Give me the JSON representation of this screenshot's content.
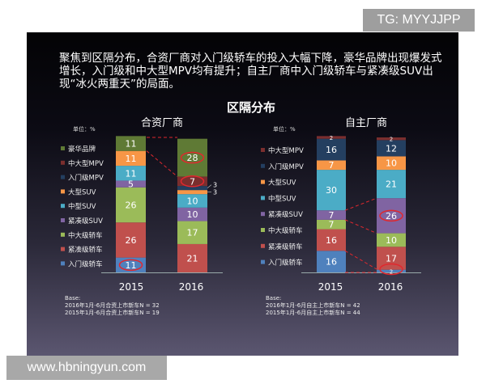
{
  "watermark_top": "TG: MYYJJPP",
  "watermark_bottom": "www.hbningyun.com",
  "intro": "聚焦到区隔分布，合资厂商对入门级轿车的投入大幅下降，豪华品牌出现爆发式增长，入门级和中大型MPV均有提升；自主厂商中入门级轿车与紧凑级SUV出现“冰火两重天”的局面。",
  "main_title": "区隔分布",
  "colors": {
    "入门级轿车": "#4f81bd",
    "紧凑级轿车": "#c0504d",
    "中大级轿车": "#9bbb59",
    "紧凑级SUV": "#8064a2",
    "中型SUV": "#4bacc6",
    "大型SUV": "#f79646",
    "入门级MPV": "#243f60",
    "中大型MPV": "#7a2e2e",
    "豪华品牌": "#5f7a35",
    "highlight": "#e0282e"
  },
  "chart_data": [
    {
      "type": "bar",
      "stacked": true,
      "title": "合资厂商",
      "unit_label": "单位：%",
      "categories": [
        "2015",
        "2016"
      ],
      "series": [
        {
          "name": "入门级轿车",
          "values": [
            11,
            0
          ]
        },
        {
          "name": "紧凑级轿车",
          "values": [
            26,
            21
          ]
        },
        {
          "name": "中大级轿车",
          "values": [
            26,
            17
          ]
        },
        {
          "name": "紧凑级SUV",
          "values": [
            5,
            10
          ]
        },
        {
          "name": "中型SUV",
          "values": [
            11,
            10
          ]
        },
        {
          "name": "大型SUV",
          "values": [
            11,
            3
          ]
        },
        {
          "name": "入门级MPV",
          "values": [
            0,
            3
          ]
        },
        {
          "name": "中大型MPV",
          "values": [
            0,
            7
          ]
        },
        {
          "name": "豪华品牌",
          "values": [
            11,
            28
          ]
        }
      ],
      "legend": [
        "豪华品牌",
        "中大型MPV",
        "入门级MPV",
        "大型SUV",
        "中型SUV",
        "紧凑级SUV",
        "中大级轿车",
        "紧凑级轿车",
        "入门级轿车"
      ],
      "highlighted": [
        [
          "入门级轿车",
          0
        ],
        [
          "豪华品牌",
          1
        ],
        [
          "中大型MPV",
          1
        ]
      ],
      "base_label": "Base:",
      "base_notes": [
        "2016年1月-6月合资上市新车N = 32",
        "2015年1月-6月合资上市新车N = 19"
      ]
    },
    {
      "type": "bar",
      "stacked": true,
      "title": "自主厂商",
      "unit_label": "单位：%",
      "categories": [
        "2015",
        "2016"
      ],
      "series": [
        {
          "name": "入门级轿车",
          "values": [
            16,
            2
          ]
        },
        {
          "name": "紧凑级轿车",
          "values": [
            16,
            17
          ]
        },
        {
          "name": "中大级轿车",
          "values": [
            7,
            10
          ]
        },
        {
          "name": "紧凑级SUV",
          "values": [
            7,
            26
          ]
        },
        {
          "name": "中型SUV",
          "values": [
            30,
            21
          ]
        },
        {
          "name": "大型SUV",
          "values": [
            7,
            10
          ]
        },
        {
          "name": "入门级MPV",
          "values": [
            16,
            12
          ]
        },
        {
          "name": "中大型MPV",
          "values": [
            2,
            2
          ]
        }
      ],
      "legend": [
        "中大型MPV",
        "入门级MPV",
        "大型SUV",
        "中型SUV",
        "紧凑级SUV",
        "中大级轿车",
        "紧凑级轿车",
        "入门级轿车"
      ],
      "highlighted": [
        [
          "紧凑级SUV",
          1
        ],
        [
          "入门级轿车",
          1
        ]
      ],
      "base_label": "Base:",
      "base_notes": [
        "2016年1月-6月自主上市新车N = 42",
        "2015年1月-6月自主上市新车N = 44"
      ]
    }
  ]
}
